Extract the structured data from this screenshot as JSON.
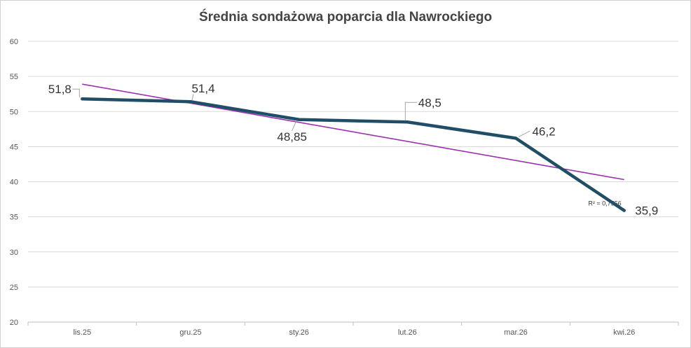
{
  "chart_data": {
    "type": "line",
    "title": "Średnia sondażowa poparcia dla  Nawrockiego",
    "categories": [
      "lis.25",
      "gru.25",
      "sty.26",
      "lut.26",
      "mar.26",
      "kwi.26"
    ],
    "series": [
      {
        "values": [
          51.8,
          51.4,
          48.85,
          48.5,
          46.2,
          35.9
        ],
        "data_labels": [
          "51,8",
          "51,4",
          "48,85",
          "48,5",
          "46,2",
          "35,9"
        ],
        "color": "#1f4e66"
      }
    ],
    "trendline": {
      "type": "linear",
      "start": 53.9,
      "end": 40.3,
      "color": "#9b30b0",
      "r2_text": "R² = 0,7556"
    },
    "y_ticks": [
      20,
      25,
      30,
      35,
      40,
      45,
      50,
      55,
      60
    ],
    "ylim": [
      20,
      60
    ],
    "grid": true,
    "legend": "none"
  }
}
